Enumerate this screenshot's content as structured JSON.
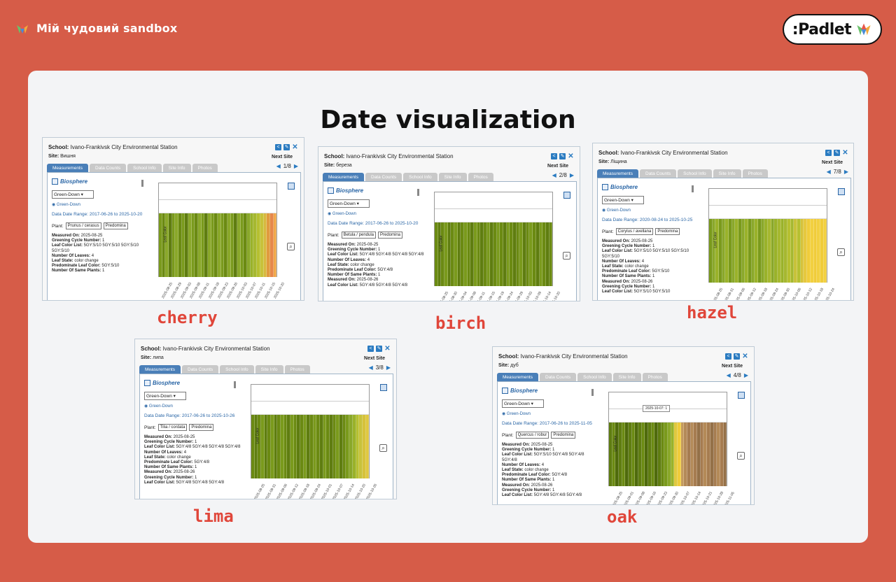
{
  "header": {
    "board_title": "Мій чудовий sandbox",
    "padlet_label": ":Padlet"
  },
  "board": {
    "title": "Date visualization"
  },
  "cards": [
    {
      "caption": "cherry",
      "school_label": "School:",
      "school": "Ivano-Frankivsk City Environmental Station",
      "site_label": "Site:",
      "site": "Вишня",
      "next_site": "Next Site",
      "pager": "1/8",
      "tabs": [
        "Measurements",
        "Data Counts",
        "School Info",
        "Site Info",
        "Photos"
      ],
      "biosphere": "Biosphere",
      "protocol": "Green-Down",
      "radio": "Green-Down",
      "range": "Data Date Range: 2017-06-26 to 2025-10-20",
      "plant_label": "Plant:",
      "plant": "Prunus / cerasus",
      "predominant": "Predomina",
      "measurements": [
        [
          "Measured On:",
          "2025-08-25"
        ],
        [
          "Greening Cycle Number:",
          "1"
        ],
        [
          "Leaf Color List:",
          "5GY:5/10 5GY:5/10 5GY:5/10 5GY:5/10"
        ],
        [
          "Number Of Leaves:",
          "4"
        ],
        [
          "Leaf State:",
          "color change"
        ],
        [
          "Predominate Leaf Color:",
          "5GY:5/10"
        ],
        [
          "Number Of Same Plants:",
          "1"
        ]
      ],
      "ylabel": "Leaf Color",
      "dates": [
        "2025-08-25",
        "2025-08-29",
        "2025-09-03",
        "2025-09-08",
        "2025-09-11",
        "2025-09-18",
        "2025-09-23",
        "2025-09-26",
        "2025-10-03",
        "2025-10-07",
        "2025-10-11",
        "2025-10-15",
        "2025-10-20"
      ],
      "bar_colors": [
        "#7a9a1c",
        "#6b8a12",
        "#8aa82a",
        "#5f7d10",
        "#7a9a1c",
        "#8aa82a",
        "#6b8a12",
        "#7a9a1c",
        "#5f7d10",
        "#8aa82a",
        "#7a9a1c",
        "#6b8a12",
        "#8aa82a",
        "#7a9a1c",
        "#5f7d10",
        "#8aa82a",
        "#7a9a1c",
        "#6b8a12",
        "#8aa82a",
        "#7a9a1c",
        "#6b8a12",
        "#8aa82a",
        "#7a9a1c",
        "#5f7d10",
        "#8aa82a",
        "#7a9a1c",
        "#6b8a12",
        "#8aa82a",
        "#9ab22a",
        "#a6b830",
        "#b6c030",
        "#c8c23a",
        "#d8b83e",
        "#e09a3e",
        "#e6874a",
        "#f0a84a"
      ]
    },
    {
      "caption": "birch",
      "school_label": "School:",
      "school": "Ivano-Frankivsk City Environmental Station",
      "site_label": "Site:",
      "site": "береза",
      "next_site": "Next Site",
      "pager": "2/8",
      "tabs": [
        "Measurements",
        "Data Counts",
        "School Info",
        "Site Info",
        "Photos"
      ],
      "biosphere": "Biosphere",
      "protocol": "Green-Down",
      "radio": "Green-Down",
      "range": "Data Date Range: 2017-06-26 to 2025-10-20",
      "plant_label": "Plant:",
      "plant": "Betula / pendula",
      "predominant": "Predomina",
      "measurements": [
        [
          "Measured On:",
          "2025-08-25"
        ],
        [
          "Greening Cycle Number:",
          "1"
        ],
        [
          "Leaf Color List:",
          "5GY:4/8 5GY:4/8 5GY:4/8 5GY:4/8"
        ],
        [
          "Number Of Leaves:",
          "4"
        ],
        [
          "Leaf State:",
          "color change"
        ],
        [
          "Predominate Leaf Color:",
          "5GY:4/8"
        ],
        [
          "Number Of Same Plants:",
          "1"
        ],
        [
          "Measured On:",
          "2025-08-26"
        ],
        [
          "Leaf Color List:",
          "5GY:4/8 5GY:4/8 5GY:4/8"
        ]
      ],
      "ylabel": "Leaf Color",
      "dates": [
        "2025-08-25",
        "2025-08-30",
        "2025-09-04",
        "2025-09-08",
        "2025-09-11",
        "2025-09-15",
        "2025-09-19",
        "2025-09-24",
        "2025-09-29",
        "2025-10-03",
        "2025-10-09",
        "2025-10-14",
        "2025-10-20"
      ],
      "bar_colors": [
        "#6b8a12",
        "#5f7d10",
        "#6b8a12",
        "#7a9a1c",
        "#5f7d10",
        "#6b8a12",
        "#7a9a1c",
        "#5f7d10",
        "#6b8a12",
        "#7a9a1c",
        "#6b8a12",
        "#5f7d10",
        "#7a9a1c",
        "#6b8a12",
        "#5f7d10",
        "#6b8a12",
        "#7a9a1c",
        "#5f7d10",
        "#6b8a12",
        "#7a9a1c",
        "#6b8a12",
        "#5f7d10",
        "#7a9a1c",
        "#6b8a12",
        "#5f7d10",
        "#6b8a12",
        "#7a9a1c",
        "#5f7d10",
        "#6b8a12",
        "#7a9a1c",
        "#6b8a12",
        "#5f7d10",
        "#7a9a1c",
        "#6b8a12",
        "#5f7d10",
        "#6b8a12"
      ]
    },
    {
      "caption": "hazel",
      "school_label": "School:",
      "school": "Ivano-Frankivsk City Environmental Station",
      "site_label": "Site:",
      "site": "Ліщина",
      "next_site": "Next Site",
      "pager": "7/8",
      "tabs": [
        "Measurements",
        "Data Counts",
        "School Info",
        "Site Info",
        "Photos"
      ],
      "biosphere": "Biosphere",
      "protocol": "Green-Down",
      "radio": "Green-Down",
      "range": "Data Date Range: 2020-08-24 to 2025-10-25",
      "plant_label": "Plant:",
      "plant": "Corylus / avellana",
      "predominant": "Predomina",
      "measurements": [
        [
          "Measured On:",
          "2025-08-25"
        ],
        [
          "Greening Cycle Number:",
          "1"
        ],
        [
          "Leaf Color List:",
          "5GY:5/10 5GY:5/10 5GY:5/10 5GY:5/10"
        ],
        [
          "Number Of Leaves:",
          "4"
        ],
        [
          "Leaf State:",
          "color change"
        ],
        [
          "Predominate Leaf Color:",
          "5GY:5/10"
        ],
        [
          "Number Of Same Plants:",
          "1"
        ],
        [
          "Measured On:",
          "2025-08-26"
        ],
        [
          "Greening Cycle Number:",
          "1"
        ],
        [
          "Leaf Color List:",
          "5GY:5/10 5GY:5/10"
        ]
      ],
      "ylabel": "Leaf Color",
      "dates": [
        "2025-08-25",
        "2025-08-31",
        "2025-09-06",
        "2025-09-12",
        "2025-09-18",
        "2025-09-24",
        "2025-09-30",
        "2025-10-06",
        "2025-10-12",
        "2025-10-18",
        "2025-10-24"
      ],
      "bar_colors": [
        "#7a9a1c",
        "#8aa82a",
        "#9ab22a",
        "#7a9a1c",
        "#8aa82a",
        "#9ab22a",
        "#7a9a1c",
        "#8aa82a",
        "#9ab22a",
        "#7a9a1c",
        "#8aa82a",
        "#9ab22a",
        "#7a9a1c",
        "#8aa82a",
        "#9ab22a",
        "#7a9a1c",
        "#8aa82a",
        "#9ab22a",
        "#a6b830",
        "#8aa82a",
        "#9ab22a",
        "#a6b830",
        "#9ab22a",
        "#a6b830",
        "#b6c030",
        "#a6b830",
        "#c8c23a",
        "#b6c030",
        "#d6c23a",
        "#e6c83e",
        "#f0cc3a",
        "#f2d040",
        "#f0cc3a",
        "#f2d040",
        "#f0cc3a",
        "#f2d040"
      ]
    },
    {
      "caption": "lima",
      "school_label": "School:",
      "school": "Ivano-Frankivsk City Environmental Station",
      "site_label": "Site:",
      "site": "липа",
      "next_site": "Next Site",
      "pager": "3/8",
      "tabs": [
        "Measurements",
        "Data Counts",
        "School Info",
        "Site Info",
        "Photos"
      ],
      "biosphere": "Biosphere",
      "protocol": "Green-Down",
      "radio": "Green-Down",
      "range": "Data Date Range: 2017-06-26 to 2025-10-26",
      "plant_label": "Plant:",
      "plant": "Tilia / cordata",
      "predominant": "Predomina",
      "measurements": [
        [
          "Measured On:",
          "2025-08-25"
        ],
        [
          "Greening Cycle Number:",
          "1"
        ],
        [
          "Leaf Color List:",
          "5GY:4/8 5GY:4/8 5GY:4/8 5GY:4/8"
        ],
        [
          "Number Of Leaves:",
          "4"
        ],
        [
          "Leaf State:",
          "color change"
        ],
        [
          "Predominate Leaf Color:",
          "5GY:4/8"
        ],
        [
          "Number Of Same Plants:",
          "1"
        ],
        [
          "Measured On:",
          "2025-08-26"
        ],
        [
          "Greening Cycle Number:",
          "1"
        ],
        [
          "Leaf Color List:",
          "5GY:4/8 5GY:4/8 5GY:4/8"
        ]
      ],
      "ylabel": "Leaf Color",
      "dates": [
        "2025-08-25",
        "2025-08-31",
        "2025-09-06",
        "2025-09-12",
        "2025-09-18",
        "2025-09-24",
        "2025-10-01",
        "2025-10-07",
        "2025-10-14",
        "2025-10-20",
        "2025-10-26"
      ],
      "bar_colors": [
        "#6b8a12",
        "#5f7d10",
        "#6b8a12",
        "#7a9a1c",
        "#5f7d10",
        "#6b8a12",
        "#7a9a1c",
        "#5f7d10",
        "#6b8a12",
        "#7a9a1c",
        "#6b8a12",
        "#5f7d10",
        "#7a9a1c",
        "#6b8a12",
        "#5f7d10",
        "#6b8a12",
        "#7a9a1c",
        "#5f7d10",
        "#6b8a12",
        "#7a9a1c",
        "#6b8a12",
        "#5f7d10",
        "#7a9a1c",
        "#6b8a12",
        "#5f7d10",
        "#6b8a12",
        "#7a9a1c",
        "#5f7d10",
        "#6b8a12",
        "#7a9a1c",
        "#8aa82a",
        "#9ab22a",
        "#b6c030",
        "#c8c23a",
        "#d6c23a",
        "#e0c83e"
      ]
    },
    {
      "caption": "oak",
      "school_label": "School:",
      "school": "Ivano-Frankivsk City Environmental Station",
      "site_label": "Site:",
      "site": "дуб",
      "next_site": "Next Site",
      "pager": "4/8",
      "tabs": [
        "Measurements",
        "Data Counts",
        "School Info",
        "Site Info",
        "Photos"
      ],
      "biosphere": "Biosphere",
      "protocol": "Green-Down",
      "radio": "Green-Down",
      "range": "Data Date Range: 2017-06-26 to 2025-11-05",
      "plant_label": "Plant:",
      "plant": "Quercus / robur",
      "predominant": "Predomina",
      "measurements": [
        [
          "Measured On:",
          "2025-08-25"
        ],
        [
          "Greening Cycle Number:",
          "1"
        ],
        [
          "Leaf Color List:",
          "5GY:5/10 5GY:4/8 5GY:4/8 5GY:4/8"
        ],
        [
          "Number Of Leaves:",
          "4"
        ],
        [
          "Leaf State:",
          "color change"
        ],
        [
          "Predominate Leaf Color:",
          "5GY:4/8"
        ],
        [
          "Number Of Same Plants:",
          "1"
        ],
        [
          "Measured On:",
          "2025-08-26"
        ],
        [
          "Greening Cycle Number:",
          "1"
        ],
        [
          "Leaf Color List:",
          "5GY:4/8 5GY:4/8 5GY:4/8"
        ]
      ],
      "tooltip": "2025-10-07: 1",
      "ylabel": "Leaf Color",
      "dates": [
        "2025-08-25",
        "2025-09-01",
        "2025-09-08",
        "2025-09-16",
        "2025-09-23",
        "2025-09-30",
        "2025-10-07",
        "2025-10-14",
        "2025-10-21",
        "2025-10-28",
        "2025-11-05"
      ],
      "bar_colors": [
        "#5f7d10",
        "#6b8a12",
        "#4f6a0c",
        "#5f7d10",
        "#6b8a12",
        "#4f6a0c",
        "#5f7d10",
        "#6b8a12",
        "#4f6a0c",
        "#5f7d10",
        "#6b8a12",
        "#4f6a0c",
        "#5f7d10",
        "#6b8a12",
        "#4f6a0c",
        "#5f7d10",
        "#6b8a12",
        "#7a9a1c",
        "#8aa82a",
        "#9ab22a",
        "#e0c83e",
        "#f0cc3a",
        "#c49a5e",
        "#b48a58",
        "#a67c50",
        "#b48a58",
        "#a67c50",
        "#947048",
        "#a67c50",
        "#b48a58",
        "#a67c50",
        "#947048",
        "#a67c50",
        "#b48a58",
        "#a67c50",
        "#947048"
      ]
    }
  ]
}
